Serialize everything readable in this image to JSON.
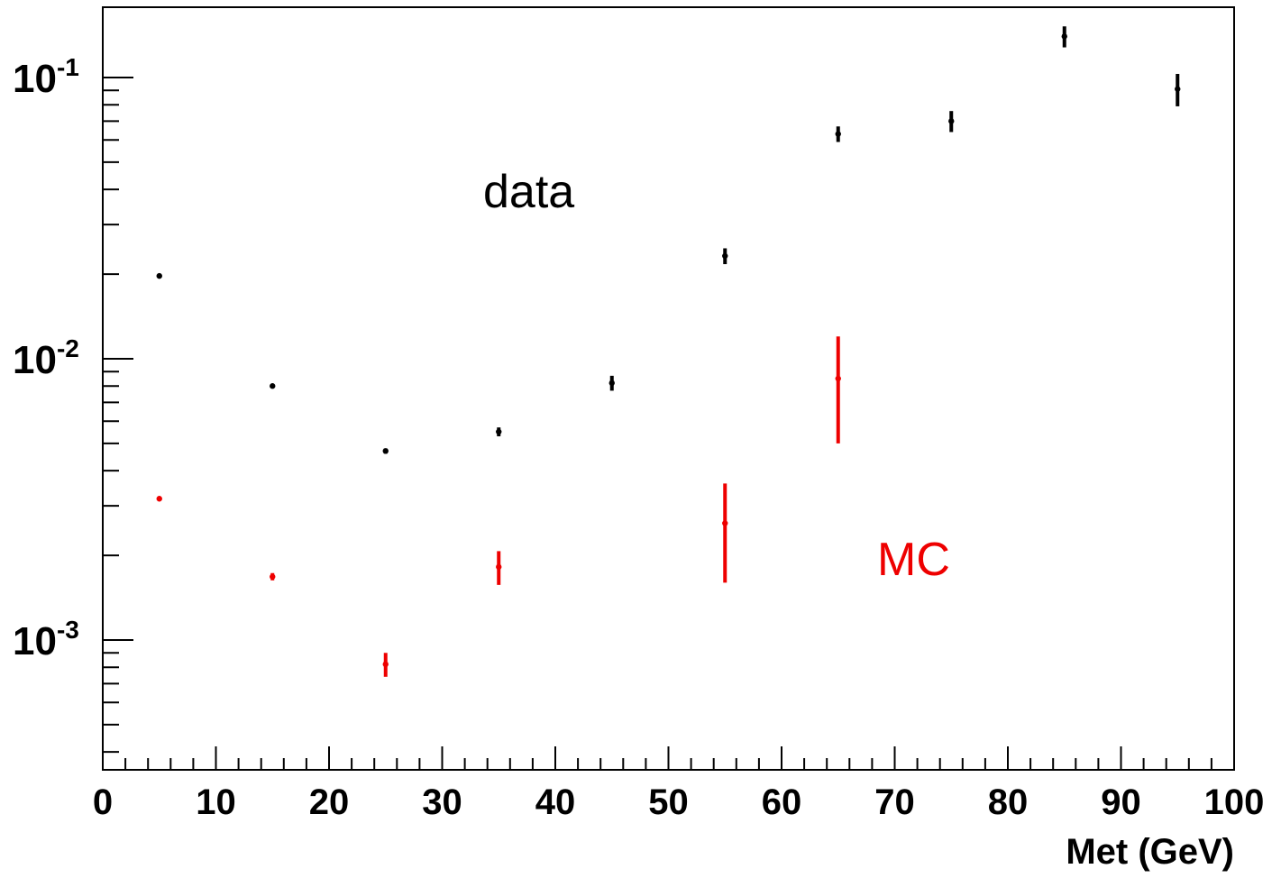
{
  "chart_data": {
    "type": "scatter",
    "title": "",
    "xlabel": "Met (GeV)",
    "ylabel": "",
    "xlim": [
      0,
      100
    ],
    "ylim": [
      0.00035,
      0.18
    ],
    "yscale": "log",
    "grid": false,
    "legend": "none",
    "x_ticks": [
      0,
      10,
      20,
      30,
      40,
      50,
      60,
      70,
      80,
      90,
      100
    ],
    "x_tick_labels": [
      "0",
      "10",
      "20",
      "30",
      "40",
      "50",
      "60",
      "70",
      "80",
      "90",
      "100"
    ],
    "y_ticks": [
      {
        "value": 0.001,
        "base": "10",
        "exp": "-3"
      },
      {
        "value": 0.01,
        "base": "10",
        "exp": "-2"
      },
      {
        "value": 0.1,
        "base": "10",
        "exp": "-1"
      }
    ],
    "series": [
      {
        "color": "#000000",
        "x": [
          5,
          15,
          25,
          35,
          45,
          55,
          65,
          75,
          85,
          95
        ],
        "y": [
          0.0197,
          0.008,
          0.0047,
          0.0055,
          0.0082,
          0.0232,
          0.063,
          0.07,
          0.14,
          0.091
        ],
        "err": [
          0.0002,
          0.0001,
          0.0001,
          0.0002,
          0.0005,
          0.0015,
          0.004,
          0.006,
          0.012,
          0.012
        ]
      },
      {
        "color": "#ee0000",
        "x": [
          5,
          15,
          25,
          35,
          45,
          55,
          65
        ],
        "y": [
          0.00318,
          0.00168,
          0.00082,
          0.00182,
          null,
          0.0026,
          0.0085
        ],
        "err": [
          4e-05,
          5e-05,
          8e-05,
          0.00025,
          null,
          0.001,
          0.0035
        ]
      }
    ],
    "annotations": [
      {
        "text": "data",
        "color": "#000000"
      },
      {
        "text": "MC",
        "color": "#ee0000"
      }
    ]
  }
}
